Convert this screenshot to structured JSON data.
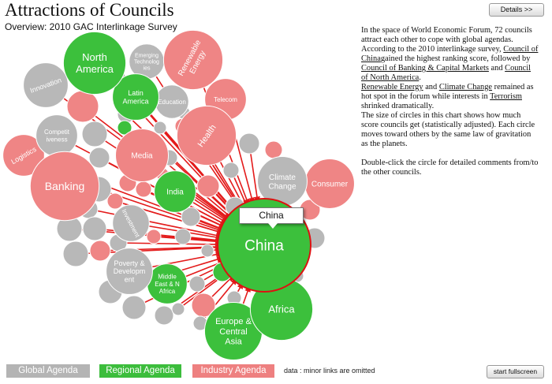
{
  "header": {
    "title": "Attractions of Councils",
    "subtitle": "Overview: 2010 GAC Interlinkage Survey",
    "details_button": "Details >>"
  },
  "description": {
    "p1": "In the space of World Economic Forum,  72 councils attract each other to cope with global agendas.",
    "p2a": "According to the 2010 interlinkage survey,",
    "p2b_link": "Council of China",
    "p2c": "gained the highest ranking score, followed by",
    "p2d_link": "Council of Banking & Capital Markets",
    "p2e": "and",
    "p2f_link": "Council of North America",
    "p2g": ".",
    "p3a_link": "Renewable Energy",
    "p3b": "and",
    "p3c_link": "Climate Change",
    "p3d": "remained as hot spot in the forum while interests in",
    "p3e_link": "Terrorism",
    "p3f": "shrinked dramatically.",
    "p4": "The size of circles in this chart shows how much score councils get (statistically  adjusted). Each circle moves toward others by the same law of gravitation as the planets.",
    "p5": "Double-click the circle for detailed comments from/to the other councils."
  },
  "tooltip": {
    "label": "China"
  },
  "legend": {
    "global": "Global Agenda",
    "regional": "Regional Agenda",
    "industry": "Industry Agenda"
  },
  "footer": {
    "note": "data : minor links are omitted",
    "fullscreen_button": "start fullscreen"
  },
  "colors": {
    "global": "#b8b8b8",
    "regional": "#3cc03c",
    "industry": "#ef8585",
    "link": "#e31b1b",
    "selected_stroke": "#dd1111"
  },
  "chart_data": {
    "type": "bubble-network",
    "selected": "China",
    "councils": [
      {
        "label": "China",
        "kind": "regional",
        "score": 100
      },
      {
        "label": "North America",
        "kind": "regional",
        "score": 62
      },
      {
        "label": "Africa",
        "kind": "regional",
        "score": 62
      },
      {
        "label": "Europe & Central Asia",
        "kind": "regional",
        "score": 56
      },
      {
        "label": "Latin America",
        "kind": "regional",
        "score": 42
      },
      {
        "label": "India",
        "kind": "regional",
        "score": 36
      },
      {
        "label": "Middle East & North Africa",
        "kind": "regional",
        "score": 34
      },
      {
        "label": "Banking",
        "kind": "industry",
        "score": 70
      },
      {
        "label": "Renewable Energy",
        "kind": "industry",
        "score": 58
      },
      {
        "label": "Health",
        "kind": "industry",
        "score": 58
      },
      {
        "label": "Media",
        "kind": "industry",
        "score": 50
      },
      {
        "label": "Consumer",
        "kind": "industry",
        "score": 46
      },
      {
        "label": "Logistics",
        "kind": "industry",
        "score": 36
      },
      {
        "label": "Telecom",
        "kind": "industry",
        "score": 36
      },
      {
        "label": "Climate Change",
        "kind": "global",
        "score": 46
      },
      {
        "label": "Innovation",
        "kind": "global",
        "score": 40
      },
      {
        "label": "Competitiveness",
        "kind": "global",
        "score": 36
      },
      {
        "label": "Poverty & Development",
        "kind": "global",
        "score": 42
      },
      {
        "label": "Emerging Technologies",
        "kind": "global",
        "score": 28
      },
      {
        "label": "Education",
        "kind": "global",
        "score": 26
      },
      {
        "label": "Investment",
        "kind": "global",
        "score": 30
      }
    ]
  }
}
